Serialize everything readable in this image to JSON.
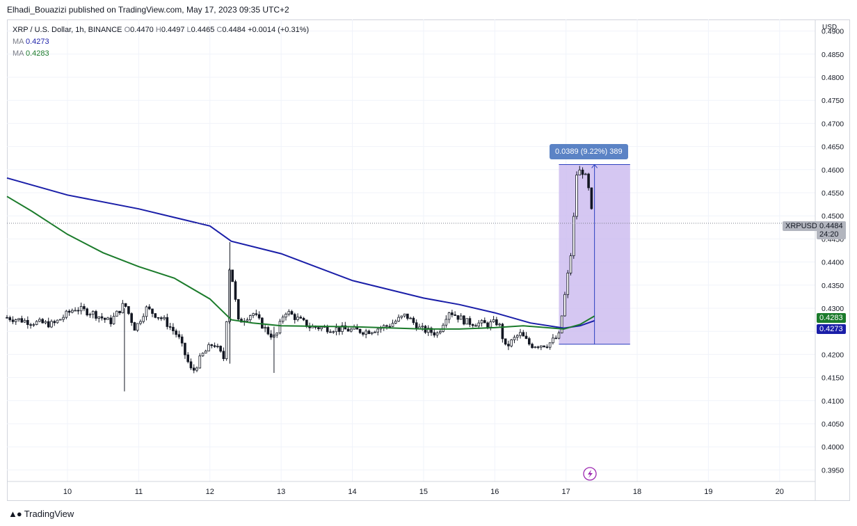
{
  "header": {
    "published_by": "Elhadi_Bouazizi published on TradingView.com, May 17, 2023 09:35 UTC+2"
  },
  "legend": {
    "symbol": "XRP / U.S. Dollar, 1h, BINANCE",
    "o_label": "O",
    "o": "0.4470",
    "h_label": "H",
    "h": "0.4497",
    "l_label": "L",
    "l": "0.4465",
    "c_label": "C",
    "c": "0.4484",
    "change": "+0.0014 (+0.31%)",
    "ma1_label": "MA",
    "ma1_value": "0.4273",
    "ma2_label": "MA",
    "ma2_value": "0.4283"
  },
  "measure": {
    "label": "0.0389 (9.22%) 389"
  },
  "axis": {
    "currency": "USD",
    "symbol_tag": "XRPUSD",
    "price_tag": "0.4484",
    "countdown": "24:20",
    "ma2_tag": "0.4283",
    "ma1_tag": "0.4273"
  },
  "footer": {
    "brand": "TradingView"
  },
  "colors": {
    "ma1": "#1a1ea8",
    "ma2": "#1b7b2b",
    "candle": "#131722",
    "measure_fill": "#cbb9ef",
    "measure_line": "#2a3fbf"
  },
  "chart_data": {
    "type": "candlestick",
    "title": "XRP / U.S. Dollar, 1h, BINANCE",
    "ylim": [
      0.3925,
      0.4925
    ],
    "y_ticks": [
      "0.3950",
      "0.4000",
      "0.4050",
      "0.4100",
      "0.4150",
      "0.4200",
      "0.4250",
      "0.4300",
      "0.4350",
      "0.4400",
      "0.4450",
      "0.4500",
      "0.4550",
      "0.4600",
      "0.4650",
      "0.4700",
      "0.4750",
      "0.4800",
      "0.4850",
      "0.4900"
    ],
    "x_ticks": [
      "10",
      "11",
      "12",
      "13",
      "14",
      "15",
      "16",
      "17",
      "18",
      "19",
      "20"
    ],
    "xlim_days": [
      9.15,
      20.5
    ],
    "last_price": 0.4484,
    "ma_series": [
      {
        "name": "MA",
        "color": "#1a1ea8",
        "points": [
          [
            9.15,
            0.4582
          ],
          [
            10.0,
            0.4545
          ],
          [
            11.0,
            0.4515
          ],
          [
            12.0,
            0.4478
          ],
          [
            12.3,
            0.4445
          ],
          [
            13.0,
            0.4418
          ],
          [
            14.0,
            0.436
          ],
          [
            15.0,
            0.4322
          ],
          [
            15.5,
            0.4308
          ],
          [
            16.0,
            0.429
          ],
          [
            16.5,
            0.4268
          ],
          [
            16.97,
            0.4257
          ],
          [
            17.2,
            0.4262
          ],
          [
            17.4,
            0.4273
          ]
        ]
      },
      {
        "name": "MA",
        "color": "#1b7b2b",
        "points": [
          [
            9.15,
            0.4542
          ],
          [
            9.5,
            0.451
          ],
          [
            10.0,
            0.446
          ],
          [
            10.5,
            0.442
          ],
          [
            11.0,
            0.439
          ],
          [
            11.5,
            0.4365
          ],
          [
            12.0,
            0.432
          ],
          [
            12.3,
            0.4275
          ],
          [
            12.6,
            0.4268
          ],
          [
            13.0,
            0.4262
          ],
          [
            14.0,
            0.426
          ],
          [
            15.0,
            0.4255
          ],
          [
            15.5,
            0.4255
          ],
          [
            16.0,
            0.4258
          ],
          [
            16.4,
            0.4262
          ],
          [
            16.97,
            0.4255
          ],
          [
            17.2,
            0.4265
          ],
          [
            17.4,
            0.4283
          ]
        ]
      }
    ],
    "price_path": [
      [
        9.15,
        0.428
      ],
      [
        9.5,
        0.427
      ],
      [
        9.8,
        0.4265
      ],
      [
        10.1,
        0.43
      ],
      [
        10.35,
        0.429
      ],
      [
        10.6,
        0.427
      ],
      [
        10.8,
        0.431
      ],
      [
        10.95,
        0.4255
      ],
      [
        11.1,
        0.43
      ],
      [
        11.35,
        0.4275
      ],
      [
        11.55,
        0.424
      ],
      [
        11.75,
        0.416
      ],
      [
        11.9,
        0.42
      ],
      [
        12.05,
        0.4225
      ],
      [
        12.2,
        0.419
      ],
      [
        12.28,
        0.44
      ],
      [
        12.4,
        0.427
      ],
      [
        12.6,
        0.429
      ],
      [
        12.8,
        0.425
      ],
      [
        12.92,
        0.4235
      ],
      [
        13.05,
        0.4295
      ],
      [
        13.4,
        0.426
      ],
      [
        13.8,
        0.4255
      ],
      [
        14.2,
        0.425
      ],
      [
        14.5,
        0.4262
      ],
      [
        14.75,
        0.4285
      ],
      [
        14.95,
        0.4255
      ],
      [
        15.2,
        0.4245
      ],
      [
        15.35,
        0.4295
      ],
      [
        15.6,
        0.427
      ],
      [
        15.9,
        0.4265
      ],
      [
        16.05,
        0.427
      ],
      [
        16.15,
        0.4215
      ],
      [
        16.35,
        0.4245
      ],
      [
        16.5,
        0.422
      ],
      [
        16.75,
        0.4222
      ],
      [
        16.9,
        0.424
      ],
      [
        17.0,
        0.4345
      ],
      [
        17.08,
        0.443
      ],
      [
        17.15,
        0.459
      ],
      [
        17.22,
        0.46
      ],
      [
        17.3,
        0.4575
      ],
      [
        17.38,
        0.4484
      ]
    ],
    "annotations": [
      {
        "type": "price_range",
        "from": 0.4222,
        "to": 0.4611,
        "x_start": 16.9,
        "x_end": 17.9,
        "label": "0.0389 (9.22%) 389"
      }
    ]
  }
}
